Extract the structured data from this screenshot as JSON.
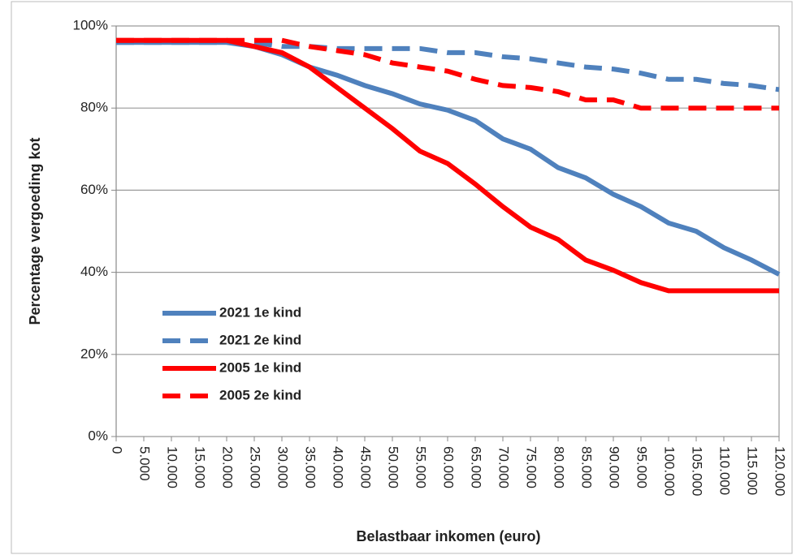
{
  "chart_data": {
    "type": "line",
    "x_label": "Belastbaar inkomen (euro)",
    "y_label": "Percentage vergoeding kot",
    "x": [
      0,
      5000,
      10000,
      15000,
      20000,
      25000,
      30000,
      35000,
      40000,
      45000,
      50000,
      55000,
      60000,
      65000,
      70000,
      75000,
      80000,
      85000,
      90000,
      95000,
      100000,
      105000,
      110000,
      115000,
      120000
    ],
    "series": [
      {
        "name": "2021 1e kind",
        "color": "#4f81bd",
        "dashed": false,
        "values": [
          96,
          96,
          96,
          96,
          96,
          95,
          93,
          90,
          88,
          85.5,
          83.5,
          81,
          79.5,
          77,
          72.5,
          70,
          65.5,
          63,
          59,
          56,
          52,
          50,
          46,
          43,
          39.5
        ]
      },
      {
        "name": "2021 2e kind",
        "color": "#4f81bd",
        "dashed": true,
        "values": [
          96,
          96,
          96,
          96,
          96,
          96,
          95,
          95,
          94.5,
          94.5,
          94.5,
          94.5,
          93.5,
          93.5,
          92.5,
          92,
          91,
          90,
          89.5,
          88.5,
          87,
          87,
          86,
          85.5,
          84.5
        ]
      },
      {
        "name": "2005 1e kind",
        "color": "#ff0000",
        "dashed": false,
        "values": [
          96.5,
          96.5,
          96.5,
          96.5,
          96.5,
          95,
          93.5,
          90,
          85,
          80,
          75,
          69.5,
          66.5,
          61.5,
          56,
          51,
          48,
          43,
          40.5,
          37.5,
          35.5,
          35.5,
          35.5,
          35.5,
          35.5
        ]
      },
      {
        "name": "2005 2e kind",
        "color": "#ff0000",
        "dashed": true,
        "values": [
          96.5,
          96.5,
          96.5,
          96.5,
          96.5,
          96.5,
          96.5,
          95,
          94,
          93,
          91,
          90,
          89,
          87,
          85.5,
          85,
          84,
          82,
          82,
          80,
          80,
          80,
          80,
          80,
          80
        ]
      }
    ],
    "xlim": [
      0,
      120000
    ],
    "xticks": [
      0,
      {
        "value": 5000,
        "label": "5.000"
      },
      {
        "value": 10000,
        "label": "10.000"
      },
      {
        "value": 15000,
        "label": "15.000"
      },
      {
        "value": 20000,
        "label": "20.000"
      },
      {
        "value": 25000,
        "label": "25.000"
      },
      {
        "value": 30000,
        "label": "30.000"
      },
      {
        "value": 35000,
        "label": "35.000"
      },
      {
        "value": 40000,
        "label": "40.000"
      },
      {
        "value": 45000,
        "label": "45.000"
      },
      {
        "value": 50000,
        "label": "50.000"
      },
      {
        "value": 55000,
        "label": "55.000"
      },
      {
        "value": 60000,
        "label": "60.000"
      },
      {
        "value": 65000,
        "label": "65.000"
      },
      {
        "value": 70000,
        "label": "70.000"
      },
      {
        "value": 75000,
        "label": "75.000"
      },
      {
        "value": 80000,
        "label": "80.000"
      },
      {
        "value": 85000,
        "label": "85.000"
      },
      {
        "value": 90000,
        "label": "90.000"
      },
      {
        "value": 95000,
        "label": "95.000"
      },
      {
        "value": 100000,
        "label": "100.000"
      },
      {
        "value": 105000,
        "label": "105.000"
      },
      {
        "value": 110000,
        "label": "110.000"
      },
      {
        "value": 115000,
        "label": "115.000"
      },
      {
        "value": 120000,
        "label": "120.000"
      }
    ],
    "ylim": [
      0,
      100
    ],
    "yticks": [
      {
        "value": 0,
        "label": "0%"
      },
      {
        "value": 20,
        "label": "20%"
      },
      {
        "value": 40,
        "label": "40%"
      },
      {
        "value": 60,
        "label": "60%"
      },
      {
        "value": 80,
        "label": "80%"
      },
      {
        "value": 100,
        "label": "100%"
      }
    ],
    "grid": true,
    "legend": "lower left"
  }
}
